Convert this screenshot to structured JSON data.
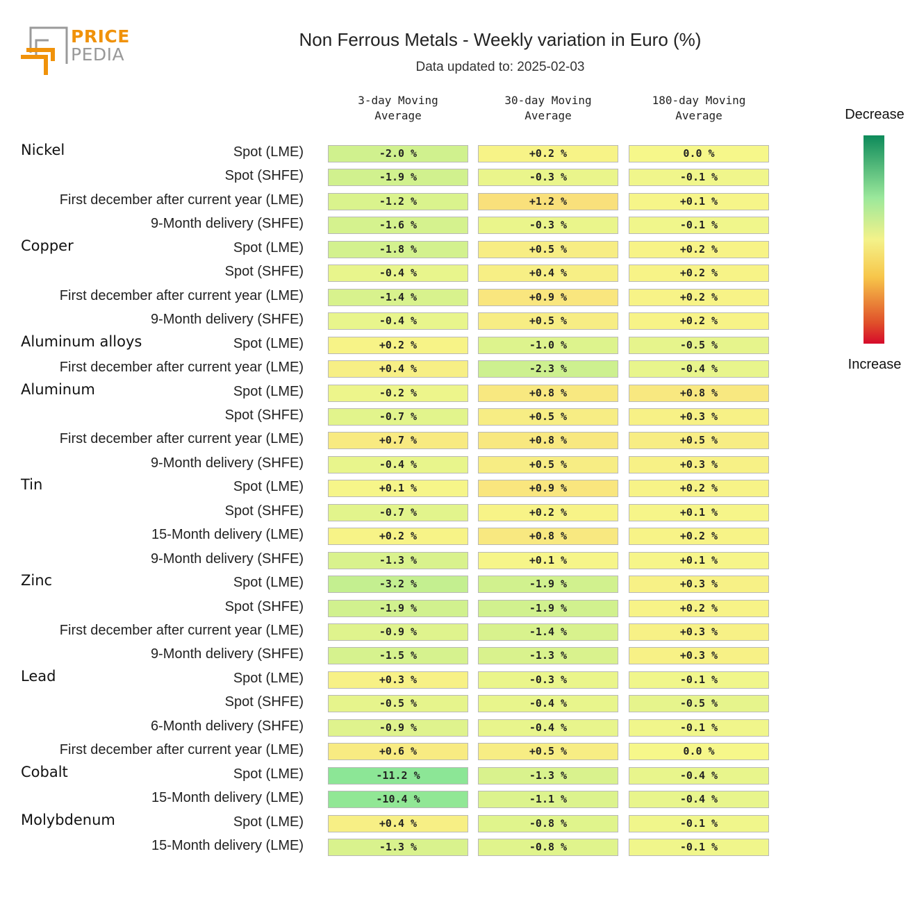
{
  "logo": {
    "word1": "PRICE",
    "word2": "PEDIA"
  },
  "header": {
    "title": "Non Ferrous Metals - Weekly variation in Euro (%)",
    "subtitle": "Data updated to: 2025-02-03"
  },
  "legend": {
    "top": "Decrease",
    "bottom": "Increase"
  },
  "chart_data": {
    "type": "heatmap",
    "columns": [
      [
        "3-day Moving",
        "Average"
      ],
      [
        "30-day Moving",
        "Average"
      ],
      [
        "180-day Moving",
        "Average"
      ]
    ],
    "groups": [
      {
        "name": "Nickel",
        "rows": [
          {
            "label": "Spot (LME)",
            "values": [
              -2.0,
              0.2,
              0.0
            ]
          },
          {
            "label": "Spot (SHFE)",
            "values": [
              -1.9,
              -0.3,
              -0.1
            ]
          },
          {
            "label": "First december after current year (LME)",
            "values": [
              -1.2,
              1.2,
              0.1
            ]
          },
          {
            "label": "9-Month delivery (SHFE)",
            "values": [
              -1.6,
              -0.3,
              -0.1
            ]
          }
        ]
      },
      {
        "name": "Copper",
        "rows": [
          {
            "label": "Spot (LME)",
            "values": [
              -1.8,
              0.5,
              0.2
            ]
          },
          {
            "label": "Spot (SHFE)",
            "values": [
              -0.4,
              0.4,
              0.2
            ]
          },
          {
            "label": "First december after current year (LME)",
            "values": [
              -1.4,
              0.9,
              0.2
            ]
          },
          {
            "label": "9-Month delivery (SHFE)",
            "values": [
              -0.4,
              0.5,
              0.2
            ]
          }
        ]
      },
      {
        "name": "Aluminum alloys",
        "rows": [
          {
            "label": "Spot (LME)",
            "values": [
              0.2,
              -1.0,
              -0.5
            ]
          },
          {
            "label": "First december after current year (LME)",
            "values": [
              0.4,
              -2.3,
              -0.4
            ]
          }
        ]
      },
      {
        "name": "Aluminum",
        "rows": [
          {
            "label": "Spot (LME)",
            "values": [
              -0.2,
              0.8,
              0.8
            ]
          },
          {
            "label": "Spot (SHFE)",
            "values": [
              -0.7,
              0.5,
              0.3
            ]
          },
          {
            "label": "First december after current year (LME)",
            "values": [
              0.7,
              0.8,
              0.5
            ]
          },
          {
            "label": "9-Month delivery (SHFE)",
            "values": [
              -0.4,
              0.5,
              0.3
            ]
          }
        ]
      },
      {
        "name": "Tin",
        "rows": [
          {
            "label": "Spot (LME)",
            "values": [
              0.1,
              0.9,
              0.2
            ]
          },
          {
            "label": "Spot (SHFE)",
            "values": [
              -0.7,
              0.2,
              0.1
            ]
          },
          {
            "label": "15-Month delivery (LME)",
            "values": [
              0.2,
              0.8,
              0.2
            ]
          },
          {
            "label": "9-Month delivery (SHFE)",
            "values": [
              -1.3,
              0.1,
              0.1
            ]
          }
        ]
      },
      {
        "name": "Zinc",
        "rows": [
          {
            "label": "Spot (LME)",
            "values": [
              -3.2,
              -1.9,
              0.3
            ]
          },
          {
            "label": "Spot (SHFE)",
            "values": [
              -1.9,
              -1.9,
              0.2
            ]
          },
          {
            "label": "First december after current year (LME)",
            "values": [
              -0.9,
              -1.4,
              0.3
            ]
          },
          {
            "label": "9-Month delivery (SHFE)",
            "values": [
              -1.5,
              -1.3,
              0.3
            ]
          }
        ]
      },
      {
        "name": "Lead",
        "rows": [
          {
            "label": "Spot (LME)",
            "values": [
              0.3,
              -0.3,
              -0.1
            ]
          },
          {
            "label": "Spot (SHFE)",
            "values": [
              -0.5,
              -0.4,
              -0.5
            ]
          },
          {
            "label": "6-Month delivery (SHFE)",
            "values": [
              -0.9,
              -0.4,
              -0.1
            ]
          },
          {
            "label": "First december after current year (LME)",
            "values": [
              0.6,
              0.5,
              0.0
            ]
          }
        ]
      },
      {
        "name": "Cobalt",
        "rows": [
          {
            "label": "Spot (LME)",
            "values": [
              -11.2,
              -1.3,
              -0.4
            ]
          },
          {
            "label": "15-Month delivery (LME)",
            "values": [
              -10.4,
              -1.1,
              -0.4
            ]
          }
        ]
      },
      {
        "name": "Molybdenum",
        "rows": [
          {
            "label": "Spot (LME)",
            "values": [
              0.4,
              -0.8,
              -0.1
            ]
          },
          {
            "label": "15-Month delivery (LME)",
            "values": [
              -1.3,
              -0.8,
              -0.1
            ]
          }
        ]
      }
    ]
  }
}
